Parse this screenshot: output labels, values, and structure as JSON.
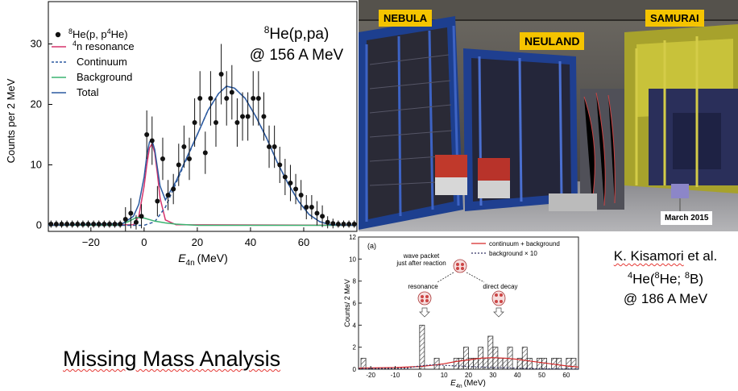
{
  "chart_data": [
    {
      "type": "scatter",
      "xlabel": "E4n (MeV)",
      "xlabel_main": "E",
      "xlabel_sub": "4n",
      "xlabel_unit": "(MeV)",
      "ylabel": "Counts per 2 MeV",
      "xlim": [
        -36,
        80
      ],
      "ylim": [
        -1,
        37
      ],
      "xticks": [
        -20,
        0,
        20,
        40,
        60
      ],
      "xtick_labels": [
        "−20",
        "0",
        "20",
        "40",
        "60"
      ],
      "yticks": [
        0,
        10,
        20,
        30
      ],
      "ytick_labels": [
        "0",
        "10",
        "20",
        "30"
      ],
      "legend_placement": "top-left",
      "legend": [
        {
          "sup": "8",
          "text": "He(p, p",
          "sup2": "4",
          "text2": "He)",
          "marker": "dot"
        },
        {
          "sup": "4",
          "text": "n resonance",
          "color": "#d6336c",
          "style": "solid"
        },
        {
          "text": "Continuum",
          "color": "#2c5aa0",
          "style": "dashed"
        },
        {
          "text": "Background",
          "color": "#3cb371",
          "style": "solid"
        },
        {
          "text": "Total",
          "color": "#2c5aa0",
          "style": "solid"
        }
      ],
      "annotation_line1_sup": "8",
      "annotation_line1": "He(p,pa)",
      "annotation_line2": "@ 156 A MeV",
      "series": [
        {
          "name": "8He(p, p4He)",
          "marker": "dot",
          "points": [
            {
              "x": -35,
              "y": 0.2,
              "err": 0.6
            },
            {
              "x": -33,
              "y": 0.2,
              "err": 0.6
            },
            {
              "x": -31,
              "y": 0.2,
              "err": 0.6
            },
            {
              "x": -29,
              "y": 0.2,
              "err": 0.6
            },
            {
              "x": -27,
              "y": 0.2,
              "err": 0.6
            },
            {
              "x": -25,
              "y": 0.2,
              "err": 0.6
            },
            {
              "x": -23,
              "y": 0.2,
              "err": 0.6
            },
            {
              "x": -21,
              "y": 0.2,
              "err": 0.6
            },
            {
              "x": -19,
              "y": 0.2,
              "err": 0.6
            },
            {
              "x": -17,
              "y": 0.2,
              "err": 0.6
            },
            {
              "x": -15,
              "y": 0.2,
              "err": 0.6
            },
            {
              "x": -13,
              "y": 0.2,
              "err": 0.6
            },
            {
              "x": -11,
              "y": 0.2,
              "err": 0.6
            },
            {
              "x": -9,
              "y": 0.2,
              "err": 0.6
            },
            {
              "x": -7,
              "y": 1.0,
              "err": 2.0
            },
            {
              "x": -5,
              "y": 2.0,
              "err": 2.5
            },
            {
              "x": -3,
              "y": 0.5,
              "err": 1.2
            },
            {
              "x": -1,
              "y": 1.5,
              "err": 2.0
            },
            {
              "x": 1,
              "y": 15.0,
              "err": 4.0
            },
            {
              "x": 3,
              "y": 14.0,
              "err": 4.0
            },
            {
              "x": 5,
              "y": 4.0,
              "err": 2.5
            },
            {
              "x": 7,
              "y": 11.0,
              "err": 3.5
            },
            {
              "x": 9,
              "y": 5.0,
              "err": 2.5
            },
            {
              "x": 11,
              "y": 6.0,
              "err": 2.5
            },
            {
              "x": 13,
              "y": 10.0,
              "err": 3.5
            },
            {
              "x": 15,
              "y": 13.0,
              "err": 3.5
            },
            {
              "x": 17,
              "y": 11.0,
              "err": 3.5
            },
            {
              "x": 19,
              "y": 17.0,
              "err": 4.0
            },
            {
              "x": 21,
              "y": 21.0,
              "err": 4.5
            },
            {
              "x": 23,
              "y": 12.0,
              "err": 3.5
            },
            {
              "x": 25,
              "y": 21.0,
              "err": 4.5
            },
            {
              "x": 27,
              "y": 17.0,
              "err": 4.0
            },
            {
              "x": 29,
              "y": 25.0,
              "err": 5.0
            },
            {
              "x": 31,
              "y": 21.0,
              "err": 4.5
            },
            {
              "x": 33,
              "y": 22.0,
              "err": 4.5
            },
            {
              "x": 35,
              "y": 17.0,
              "err": 4.0
            },
            {
              "x": 37,
              "y": 18.0,
              "err": 4.0
            },
            {
              "x": 39,
              "y": 18.0,
              "err": 4.0
            },
            {
              "x": 41,
              "y": 21.0,
              "err": 4.5
            },
            {
              "x": 43,
              "y": 21.0,
              "err": 4.5
            },
            {
              "x": 45,
              "y": 18.0,
              "err": 4.0
            },
            {
              "x": 47,
              "y": 13.0,
              "err": 3.5
            },
            {
              "x": 49,
              "y": 13.0,
              "err": 3.5
            },
            {
              "x": 51,
              "y": 10.0,
              "err": 3.0
            },
            {
              "x": 53,
              "y": 8.0,
              "err": 3.0
            },
            {
              "x": 55,
              "y": 7.0,
              "err": 3.0
            },
            {
              "x": 57,
              "y": 6.0,
              "err": 2.5
            },
            {
              "x": 59,
              "y": 5.0,
              "err": 2.5
            },
            {
              "x": 61,
              "y": 3.0,
              "err": 2.0
            },
            {
              "x": 63,
              "y": 3.0,
              "err": 2.0
            },
            {
              "x": 65,
              "y": 2.0,
              "err": 2.0
            },
            {
              "x": 67,
              "y": 1.5,
              "err": 1.8
            },
            {
              "x": 69,
              "y": 0.5,
              "err": 1.0
            },
            {
              "x": 71,
              "y": 0.3,
              "err": 0.8
            },
            {
              "x": 73,
              "y": 0.2,
              "err": 0.6
            },
            {
              "x": 75,
              "y": 0.2,
              "err": 0.6
            },
            {
              "x": 77,
              "y": 0.2,
              "err": 0.6
            },
            {
              "x": 79,
              "y": 0.2,
              "err": 0.6
            }
          ]
        },
        {
          "name": "4n resonance",
          "line": "solid",
          "color": "#d6336c",
          "x": [
            -36,
            -4,
            -2,
            0,
            1,
            2,
            3,
            4,
            5,
            6,
            8,
            12,
            80
          ],
          "y": [
            0,
            0.1,
            1.5,
            6.5,
            10,
            12.8,
            13.5,
            12,
            8.5,
            4.5,
            0.9,
            0.1,
            0
          ]
        },
        {
          "name": "Continuum",
          "line": "dashed",
          "color": "#2c5aa0",
          "x": [
            -36,
            0,
            4,
            8,
            12,
            16,
            20,
            24,
            28,
            31,
            34,
            38,
            42,
            46,
            50,
            54,
            58,
            62,
            66,
            70,
            80
          ],
          "y": [
            0,
            0,
            0.6,
            3,
            7,
            11,
            15,
            19,
            21.8,
            23,
            22.7,
            21,
            18,
            14.5,
            10.5,
            7,
            4,
            1.8,
            0.6,
            0.1,
            0
          ]
        },
        {
          "name": "Background",
          "line": "solid",
          "color": "#3cb371",
          "x": [
            -36,
            -10,
            -6,
            -3,
            0,
            4,
            8,
            12,
            16,
            20,
            80
          ],
          "y": [
            0,
            0.05,
            0.6,
            1.3,
            1.2,
            0.7,
            0.4,
            0.2,
            0.1,
            0,
            0
          ]
        },
        {
          "name": "Total",
          "line": "solid",
          "color": "#2c5aa0",
          "x": [
            -36,
            -8,
            -4,
            -2,
            0,
            1,
            2,
            3,
            4,
            5,
            6,
            8,
            12,
            16,
            20,
            24,
            28,
            31,
            34,
            38,
            42,
            46,
            50,
            54,
            58,
            62,
            66,
            70,
            80
          ],
          "y": [
            0,
            0.3,
            1.5,
            3.5,
            8,
            11.5,
            13.8,
            14,
            12.5,
            9.5,
            6.5,
            4.2,
            7.3,
            11.2,
            15,
            19,
            21.8,
            23,
            22.7,
            21,
            18,
            14.5,
            10.5,
            7,
            4,
            1.8,
            0.6,
            0.1,
            0
          ]
        }
      ]
    },
    {
      "type": "bar",
      "panel_label": "(a)",
      "xlabel_main": "E",
      "xlabel_sub": "4n",
      "xlabel_unit": "(MeV)",
      "ylabel": "Counts/ 2 MeV",
      "xlim": [
        -25,
        65
      ],
      "ylim": [
        0,
        12
      ],
      "xticks": [
        -20,
        -10,
        0,
        10,
        20,
        30,
        40,
        50,
        60
      ],
      "xtick_labels": [
        "-20",
        "-10",
        "0",
        "10",
        "20",
        "30",
        "40",
        "50",
        "60"
      ],
      "yticks": [
        0,
        2,
        4,
        6,
        8,
        10,
        12
      ],
      "ytick_labels": [
        "0",
        "2",
        "4",
        "6",
        "8",
        "10",
        "12"
      ],
      "bin_width": 2,
      "bins": [
        {
          "x0": -24,
          "v": 1
        },
        {
          "x0": 0,
          "v": 4
        },
        {
          "x0": 6,
          "v": 1
        },
        {
          "x0": 14,
          "v": 1
        },
        {
          "x0": 16,
          "v": 1
        },
        {
          "x0": 18,
          "v": 2
        },
        {
          "x0": 20,
          "v": 1
        },
        {
          "x0": 22,
          "v": 1
        },
        {
          "x0": 24,
          "v": 2
        },
        {
          "x0": 26,
          "v": 1
        },
        {
          "x0": 28,
          "v": 3
        },
        {
          "x0": 30,
          "v": 2
        },
        {
          "x0": 32,
          "v": 1
        },
        {
          "x0": 34,
          "v": 1
        },
        {
          "x0": 36,
          "v": 2
        },
        {
          "x0": 40,
          "v": 1
        },
        {
          "x0": 42,
          "v": 2
        },
        {
          "x0": 44,
          "v": 1
        },
        {
          "x0": 48,
          "v": 1
        },
        {
          "x0": 50,
          "v": 1
        },
        {
          "x0": 54,
          "v": 1
        },
        {
          "x0": 56,
          "v": 1
        },
        {
          "x0": 60,
          "v": 1
        },
        {
          "x0": 62,
          "v": 1
        }
      ],
      "legend": [
        {
          "text": "continuum + background",
          "color": "#d62728",
          "style": "solid"
        },
        {
          "text": "background × 10",
          "color": "#333366",
          "style": "dotted"
        }
      ],
      "curves": [
        {
          "name": "continuum + background",
          "color": "#d62728",
          "style": "solid",
          "x": [
            -25,
            -10,
            0,
            5,
            10,
            15,
            20,
            25,
            30,
            35,
            40,
            45,
            50,
            55,
            60,
            65
          ],
          "y": [
            0.1,
            0.15,
            0.25,
            0.35,
            0.5,
            0.7,
            0.85,
            1.0,
            1.05,
            1.0,
            0.9,
            0.75,
            0.6,
            0.45,
            0.3,
            0.2
          ]
        },
        {
          "name": "background × 10",
          "color": "#333366",
          "style": "dotted",
          "x": [
            -25,
            -5,
            0,
            5,
            10,
            20,
            30,
            40,
            50,
            65
          ],
          "y": [
            0.05,
            0.1,
            0.3,
            0.4,
            0.35,
            0.25,
            0.15,
            0.1,
            0.05,
            0.03
          ]
        }
      ],
      "inset_text": {
        "wave_packet": "wave packet",
        "just_after": "just after reaction",
        "resonance": "resonance",
        "direct_decay": "direct decay"
      }
    }
  ],
  "photo": {
    "tags": [
      "NEBULA",
      "NEULAND",
      "SAMURAI"
    ],
    "date": "March 2015"
  },
  "reference": {
    "author": "K. Kisamori",
    "author_suffix": " et al.",
    "reaction_pre": "He(",
    "reaction_sup1": "4",
    "reaction_sup2": "8",
    "reaction_mid": "He; ",
    "reaction_sup3": "8",
    "reaction_post": "B)",
    "energy": "@ 186 A MeV"
  },
  "title_text": "Missing Mass Analysis"
}
